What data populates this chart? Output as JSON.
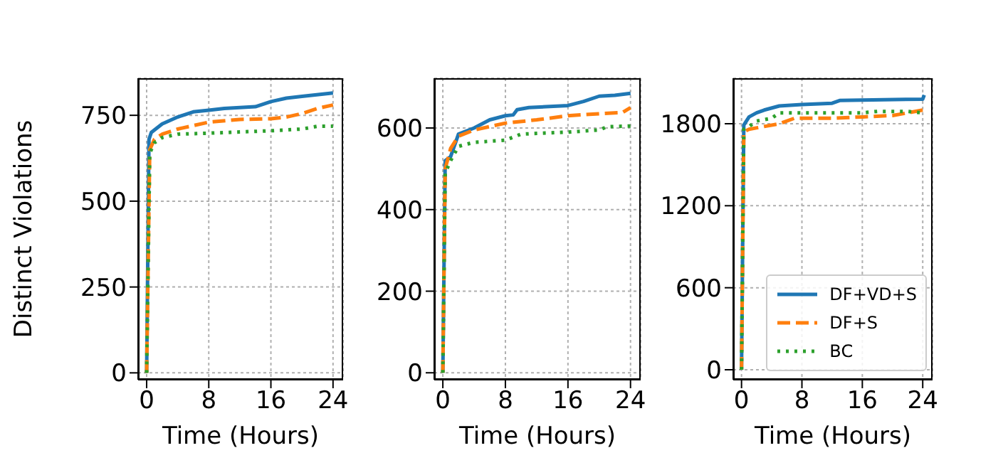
{
  "chart_data": [
    {
      "type": "line",
      "xlabel": "Time (Hours)",
      "ylabel": "Distinct Violations",
      "xlim": [
        -1.1,
        25.3
      ],
      "xticks": [
        0,
        8,
        16,
        24
      ],
      "ylim": [
        -20,
        858
      ],
      "yticks": [
        0,
        250,
        500,
        750
      ],
      "grid": true,
      "legend": false,
      "series": [
        {
          "color": "#1f77b4",
          "line_style": "solid",
          "x": [
            0,
            0.3,
            0.6,
            2,
            4,
            6,
            8,
            10,
            14,
            16,
            18,
            20,
            24
          ],
          "values": [
            0,
            680,
            700,
            725,
            745,
            760,
            765,
            770,
            775,
            790,
            800,
            805,
            815
          ]
        },
        {
          "color": "#ff7f0e",
          "line_style": "dashed",
          "x": [
            0,
            0.4,
            1,
            2,
            4,
            8,
            12,
            16,
            18,
            20,
            22,
            24
          ],
          "values": [
            0,
            650,
            680,
            695,
            710,
            730,
            738,
            740,
            745,
            755,
            770,
            780
          ]
        },
        {
          "color": "#2ca02c",
          "line_style": "dotted",
          "x": [
            0,
            0.4,
            1,
            2,
            4,
            8,
            16,
            20,
            22,
            24
          ],
          "values": [
            0,
            640,
            670,
            685,
            695,
            698,
            705,
            710,
            718,
            718
          ]
        }
      ]
    },
    {
      "type": "line",
      "xlabel": "Time (Hours)",
      "xlim": [
        -1.1,
        25.3
      ],
      "xticks": [
        0,
        8,
        16,
        24
      ],
      "ylim": [
        -17,
        722
      ],
      "yticks": [
        0,
        200,
        400,
        600
      ],
      "grid": true,
      "legend": false,
      "series": [
        {
          "color": "#1f77b4",
          "line_style": "solid",
          "x": [
            0,
            0.3,
            1,
            2,
            4,
            6,
            8,
            9,
            9.5,
            11,
            16,
            18,
            20,
            22,
            24
          ],
          "values": [
            0,
            520,
            530,
            585,
            600,
            620,
            630,
            632,
            645,
            650,
            655,
            665,
            678,
            680,
            685
          ]
        },
        {
          "color": "#ff7f0e",
          "line_style": "dashed",
          "x": [
            0,
            0.3,
            1,
            2,
            4,
            8,
            12,
            16,
            20,
            23,
            24
          ],
          "values": [
            0,
            500,
            550,
            580,
            595,
            612,
            620,
            630,
            635,
            638,
            650
          ]
        },
        {
          "color": "#2ca02c",
          "line_style": "dotted",
          "x": [
            0,
            0.3,
            1,
            2,
            4,
            8,
            10,
            16,
            20,
            21,
            24
          ],
          "values": [
            0,
            490,
            520,
            555,
            565,
            570,
            585,
            590,
            595,
            603,
            605
          ]
        }
      ]
    },
    {
      "type": "line",
      "xlabel": "Time (Hours)",
      "xlim": [
        -1.1,
        25.3
      ],
      "xticks": [
        0,
        8,
        16,
        24
      ],
      "ylim": [
        -73,
        2133
      ],
      "yticks": [
        0,
        600,
        1200,
        1800
      ],
      "grid": true,
      "legend": "bottom right",
      "series": [
        {
          "name": "DF+VD+S",
          "color": "#1f77b4",
          "line_style": "solid",
          "x": [
            0,
            0.3,
            1,
            2,
            3,
            5,
            8,
            12,
            13,
            24,
            24.2
          ],
          "values": [
            0,
            1790,
            1850,
            1880,
            1900,
            1930,
            1940,
            1950,
            1970,
            1980,
            2010
          ]
        },
        {
          "name": "DF+S",
          "color": "#ff7f0e",
          "line_style": "dashed",
          "x": [
            0,
            0.3,
            1,
            3,
            5,
            7,
            12,
            16,
            20,
            22,
            24
          ],
          "values": [
            0,
            1740,
            1760,
            1780,
            1800,
            1840,
            1840,
            1850,
            1860,
            1880,
            1900
          ]
        },
        {
          "name": "BC",
          "color": "#2ca02c",
          "line_style": "dotted",
          "x": [
            0,
            0.3,
            1,
            2,
            4,
            5,
            12,
            16,
            18,
            22,
            24
          ],
          "values": [
            0,
            1760,
            1780,
            1820,
            1840,
            1880,
            1880,
            1880,
            1890,
            1890,
            1880
          ]
        }
      ]
    }
  ]
}
